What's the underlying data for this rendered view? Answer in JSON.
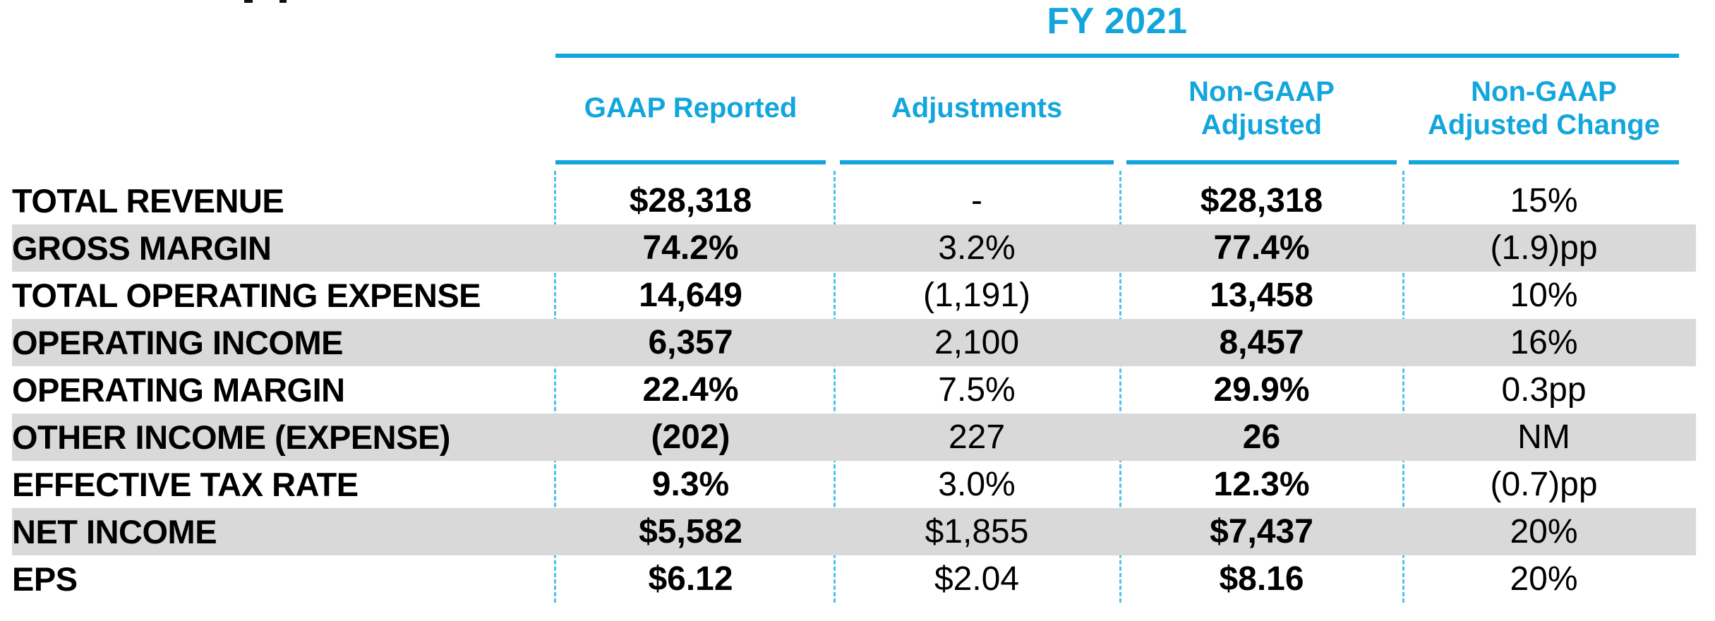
{
  "colors": {
    "accent": "#12A6DC",
    "divider": "#4FC2E9",
    "stripe": "#D9D9D9",
    "text": "#000000"
  },
  "chart_data": {
    "type": "table",
    "title": "FY 2021",
    "columns": [
      {
        "label": "GAAP Reported"
      },
      {
        "label": "Adjustments"
      },
      {
        "label": "Non-GAAP\nAdjusted"
      },
      {
        "label": "Non-GAAP\nAdjusted Change"
      }
    ],
    "rows": [
      {
        "label": "TOTAL REVENUE",
        "gaap_reported": "$28,318",
        "adjustments": "-",
        "non_gaap_adjusted": "$28,318",
        "non_gaap_adjusted_change": "15%"
      },
      {
        "label": "GROSS MARGIN",
        "gaap_reported": "74.2%",
        "adjustments": "3.2%",
        "non_gaap_adjusted": "77.4%",
        "non_gaap_adjusted_change": "(1.9)pp"
      },
      {
        "label": "TOTAL OPERATING EXPENSE",
        "gaap_reported": "14,649",
        "adjustments": "(1,191)",
        "non_gaap_adjusted": "13,458",
        "non_gaap_adjusted_change": "10%"
      },
      {
        "label": "OPERATING INCOME",
        "gaap_reported": "6,357",
        "adjustments": "2,100",
        "non_gaap_adjusted": "8,457",
        "non_gaap_adjusted_change": "16%"
      },
      {
        "label": "OPERATING MARGIN",
        "gaap_reported": "22.4%",
        "adjustments": "7.5%",
        "non_gaap_adjusted": "29.9%",
        "non_gaap_adjusted_change": "0.3pp"
      },
      {
        "label": "OTHER INCOME (EXPENSE)",
        "gaap_reported": "(202)",
        "adjustments": "227",
        "non_gaap_adjusted": "26",
        "non_gaap_adjusted_change": "NM"
      },
      {
        "label": "EFFECTIVE TAX RATE",
        "gaap_reported": "9.3%",
        "adjustments": "3.0%",
        "non_gaap_adjusted": "12.3%",
        "non_gaap_adjusted_change": "(0.7)pp"
      },
      {
        "label": "NET INCOME",
        "gaap_reported": "$5,582",
        "adjustments": "$1,855",
        "non_gaap_adjusted": "$7,437",
        "non_gaap_adjusted_change": "20%"
      },
      {
        "label": "EPS",
        "gaap_reported": "$6.12",
        "adjustments": "$2.04",
        "non_gaap_adjusted": "$8.16",
        "non_gaap_adjusted_change": "20%"
      }
    ],
    "layout": {
      "striped_row_indices": [
        1,
        3,
        5,
        7
      ],
      "column_dividers": "dashed",
      "title_position": "top-center-over-data-columns",
      "grid": "off"
    }
  }
}
